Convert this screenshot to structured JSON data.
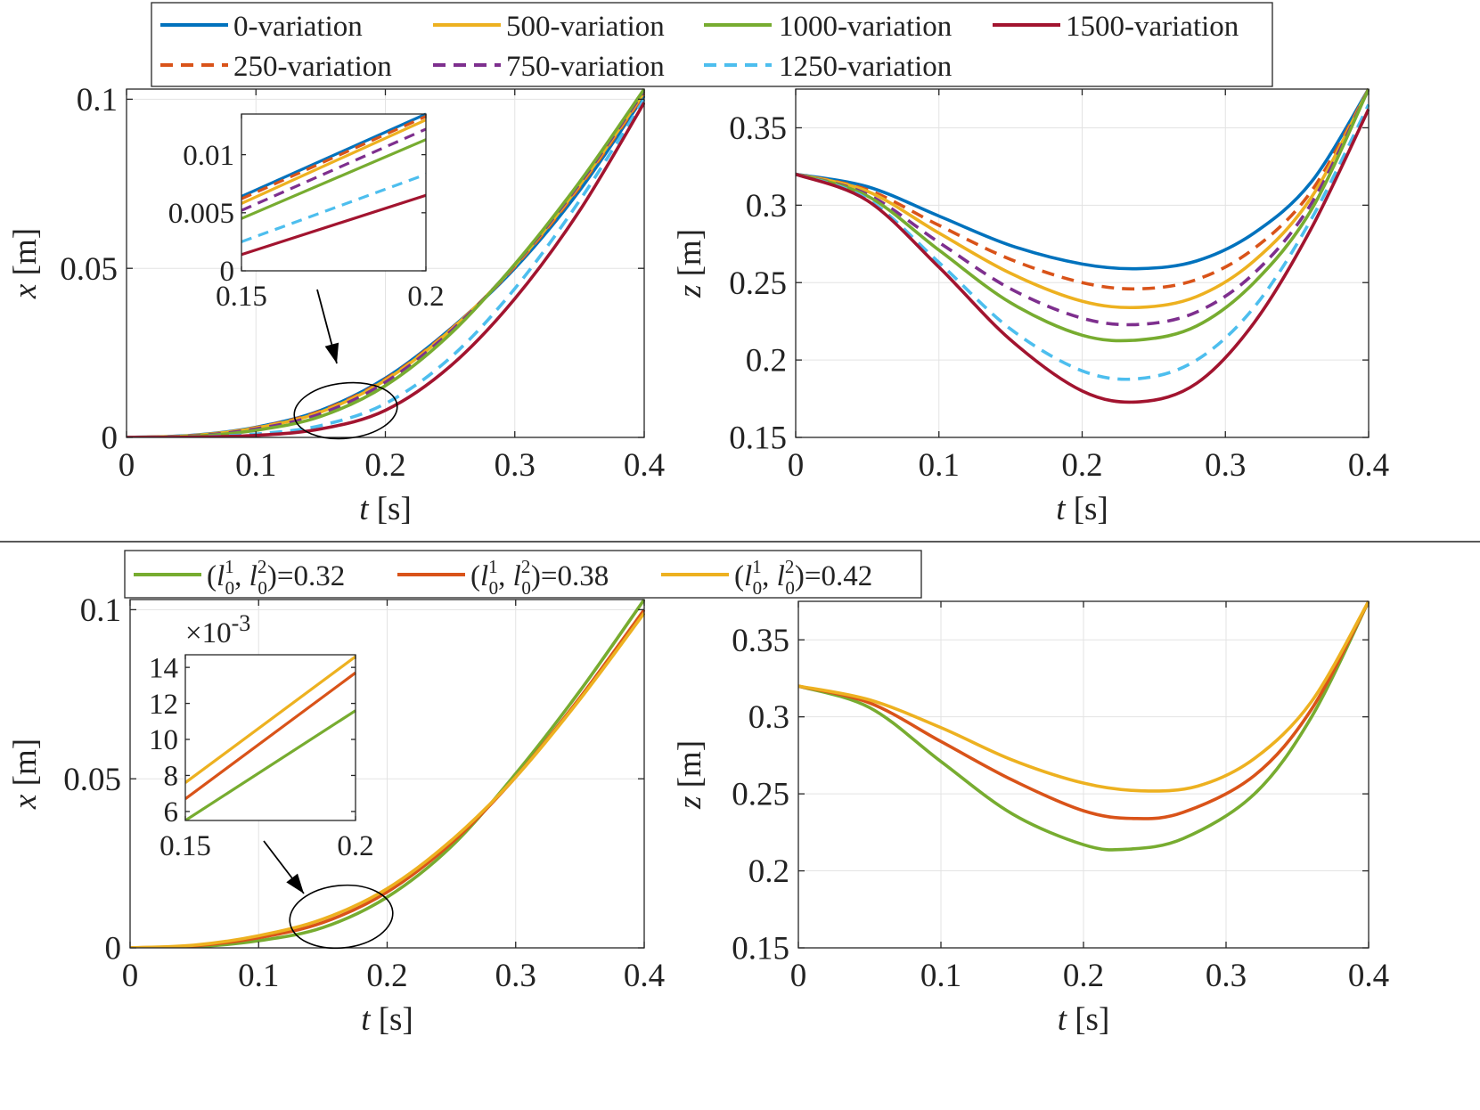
{
  "colors": {
    "blue": "#0072BD",
    "orange": "#D95319",
    "yellow": "#EDB120",
    "purple": "#7E2F8E",
    "green": "#77AC30",
    "cyan": "#4DBEEE",
    "red": "#A2142F"
  },
  "legends": {
    "top": [
      {
        "label": "0-variation",
        "color": "#0072BD",
        "dash": false
      },
      {
        "label": "500-variation",
        "color": "#EDB120",
        "dash": false
      },
      {
        "label": "1000-variation",
        "color": "#77AC30",
        "dash": false
      },
      {
        "label": "1500-variation",
        "color": "#A2142F",
        "dash": false
      },
      {
        "label": "250-variation",
        "color": "#D95319",
        "dash": true
      },
      {
        "label": "750-variation",
        "color": "#7E2F8E",
        "dash": true
      },
      {
        "label": "1250-variation",
        "color": "#4DBEEE",
        "dash": true
      }
    ],
    "bottom": [
      {
        "label": "=0.32",
        "color": "#77AC30",
        "dash": false
      },
      {
        "label": "=0.38",
        "color": "#D95319",
        "dash": false
      },
      {
        "label": "=0.42",
        "color": "#EDB120",
        "dash": false
      }
    ],
    "bottom_prefix": {
      "open": "(",
      "l1": "l",
      "sup1": "1",
      "sub1": "0",
      "comma": ", ",
      "l2": "l",
      "sup2": "2",
      "sub2": "0",
      "close": ")"
    }
  },
  "chart_data": [
    {
      "id": "top-x",
      "type": "line",
      "xlabel_var": "t",
      "xlabel_unit": "[s]",
      "ylabel_var": "x",
      "ylabel_unit": "[m]",
      "xlim": [
        0,
        0.4
      ],
      "ylim": [
        0,
        0.103
      ],
      "xticks": [
        0,
        0.1,
        0.2,
        0.3,
        0.4
      ],
      "xtick_labels": [
        "0",
        "0.1",
        "0.2",
        "0.3",
        "0.4"
      ],
      "yticks": [
        0,
        0.05,
        0.1
      ],
      "ytick_labels": [
        "0",
        "0.05",
        "0.1"
      ],
      "grid": true,
      "series": [
        {
          "name": "0-variation",
          "color": "#0072BD",
          "dash": false,
          "x": [
            0,
            0.05,
            0.1,
            0.15,
            0.2,
            0.25,
            0.3,
            0.35,
            0.4
          ],
          "y": [
            0,
            0.0006,
            0.003,
            0.008,
            0.0175,
            0.032,
            0.05,
            0.073,
            0.101
          ]
        },
        {
          "name": "250-variation",
          "color": "#D95319",
          "dash": true,
          "x": [
            0,
            0.05,
            0.1,
            0.15,
            0.2,
            0.25,
            0.3,
            0.35,
            0.4
          ],
          "y": [
            0,
            0.0005,
            0.0029,
            0.0078,
            0.0172,
            0.0318,
            0.0505,
            0.074,
            0.1015
          ]
        },
        {
          "name": "500-variation",
          "color": "#EDB120",
          "dash": false,
          "x": [
            0,
            0.05,
            0.1,
            0.15,
            0.2,
            0.25,
            0.3,
            0.35,
            0.4
          ],
          "y": [
            0,
            0.0005,
            0.0028,
            0.0075,
            0.0169,
            0.0316,
            0.0508,
            0.0745,
            0.102
          ]
        },
        {
          "name": "750-variation",
          "color": "#7E2F8E",
          "dash": true,
          "x": [
            0,
            0.05,
            0.1,
            0.15,
            0.2,
            0.25,
            0.3,
            0.35,
            0.4
          ],
          "y": [
            0,
            0.0004,
            0.0025,
            0.007,
            0.0163,
            0.0312,
            0.051,
            0.075,
            0.1025
          ]
        },
        {
          "name": "1000-variation",
          "color": "#77AC30",
          "dash": false,
          "x": [
            0,
            0.05,
            0.1,
            0.15,
            0.2,
            0.25,
            0.3,
            0.35,
            0.4
          ],
          "y": [
            0,
            0.0003,
            0.0021,
            0.0062,
            0.0153,
            0.0305,
            0.0512,
            0.0755,
            0.103
          ]
        },
        {
          "name": "1250-variation",
          "color": "#4DBEEE",
          "dash": true,
          "x": [
            0,
            0.05,
            0.1,
            0.15,
            0.2,
            0.25,
            0.3,
            0.35,
            0.4
          ],
          "y": [
            0,
            0.0001,
            0.001,
            0.0035,
            0.01,
            0.0235,
            0.044,
            0.07,
            0.1
          ]
        },
        {
          "name": "1500-variation",
          "color": "#A2142F",
          "dash": false,
          "x": [
            0,
            0.05,
            0.1,
            0.15,
            0.2,
            0.25,
            0.3,
            0.35,
            0.4
          ],
          "y": [
            0,
            0.0001,
            0.0006,
            0.0025,
            0.008,
            0.021,
            0.041,
            0.067,
            0.099
          ]
        }
      ]
    },
    {
      "id": "top-x-inset",
      "type": "line",
      "xlim": [
        0.15,
        0.2
      ],
      "ylim": [
        0,
        0.0135
      ],
      "xticks": [
        0.15,
        0.2
      ],
      "xtick_labels": [
        "0.15",
        "0.2"
      ],
      "yticks": [
        0,
        0.005,
        0.01
      ],
      "ytick_labels": [
        "0",
        "0.005",
        "0.01"
      ],
      "grid": false,
      "series": [
        {
          "name": "0-variation",
          "color": "#0072BD",
          "dash": false,
          "x": [
            0.15,
            0.2
          ],
          "y": [
            0.0064,
            0.0135
          ]
        },
        {
          "name": "250-variation",
          "color": "#D95319",
          "dash": true,
          "x": [
            0.15,
            0.2
          ],
          "y": [
            0.0062,
            0.0133
          ]
        },
        {
          "name": "500-variation",
          "color": "#EDB120",
          "dash": false,
          "x": [
            0.15,
            0.2
          ],
          "y": [
            0.0058,
            0.013
          ]
        },
        {
          "name": "750-variation",
          "color": "#7E2F8E",
          "dash": true,
          "x": [
            0.15,
            0.2
          ],
          "y": [
            0.0052,
            0.0122
          ]
        },
        {
          "name": "1000-variation",
          "color": "#77AC30",
          "dash": false,
          "x": [
            0.15,
            0.2
          ],
          "y": [
            0.0045,
            0.0113
          ]
        },
        {
          "name": "1250-variation",
          "color": "#4DBEEE",
          "dash": true,
          "x": [
            0.15,
            0.2
          ],
          "y": [
            0.0025,
            0.0083
          ]
        },
        {
          "name": "1500-variation",
          "color": "#A2142F",
          "dash": false,
          "x": [
            0.15,
            0.2
          ],
          "y": [
            0.0014,
            0.0065
          ]
        }
      ]
    },
    {
      "id": "top-z",
      "type": "line",
      "xlabel_var": "t",
      "xlabel_unit": "[s]",
      "ylabel_var": "z",
      "ylabel_unit": "[m]",
      "xlim": [
        0,
        0.4
      ],
      "ylim": [
        0.15,
        0.375
      ],
      "xticks": [
        0,
        0.1,
        0.2,
        0.3,
        0.4
      ],
      "xtick_labels": [
        "0",
        "0.1",
        "0.2",
        "0.3",
        "0.4"
      ],
      "yticks": [
        0.15,
        0.2,
        0.25,
        0.3,
        0.35
      ],
      "ytick_labels": [
        "0.15",
        "0.2",
        "0.25",
        "0.3",
        "0.35"
      ],
      "grid": true,
      "series": [
        {
          "name": "0-variation",
          "color": "#0072BD",
          "dash": false,
          "x": [
            0,
            0.05,
            0.1,
            0.15,
            0.2,
            0.24,
            0.28,
            0.32,
            0.36,
            0.4
          ],
          "y": [
            0.32,
            0.312,
            0.293,
            0.274,
            0.262,
            0.259,
            0.264,
            0.282,
            0.315,
            0.375
          ]
        },
        {
          "name": "250-variation",
          "color": "#D95319",
          "dash": true,
          "x": [
            0,
            0.05,
            0.1,
            0.15,
            0.2,
            0.24,
            0.28,
            0.32,
            0.36,
            0.4
          ],
          "y": [
            0.32,
            0.31,
            0.287,
            0.265,
            0.25,
            0.246,
            0.252,
            0.272,
            0.309,
            0.375
          ]
        },
        {
          "name": "500-variation",
          "color": "#EDB120",
          "dash": false,
          "x": [
            0,
            0.05,
            0.1,
            0.15,
            0.2,
            0.24,
            0.28,
            0.32,
            0.36,
            0.4
          ],
          "y": [
            0.32,
            0.309,
            0.282,
            0.256,
            0.238,
            0.234,
            0.241,
            0.264,
            0.305,
            0.375
          ]
        },
        {
          "name": "750-variation",
          "color": "#7E2F8E",
          "dash": true,
          "x": [
            0,
            0.05,
            0.1,
            0.15,
            0.2,
            0.24,
            0.28,
            0.32,
            0.36,
            0.4
          ],
          "y": [
            0.32,
            0.307,
            0.276,
            0.246,
            0.227,
            0.223,
            0.231,
            0.256,
            0.301,
            0.375
          ]
        },
        {
          "name": "1000-variation",
          "color": "#77AC30",
          "dash": false,
          "x": [
            0,
            0.05,
            0.1,
            0.15,
            0.2,
            0.24,
            0.28,
            0.32,
            0.36,
            0.4
          ],
          "y": [
            0.32,
            0.306,
            0.271,
            0.237,
            0.216,
            0.213,
            0.222,
            0.25,
            0.297,
            0.375
          ]
        },
        {
          "name": "1250-variation",
          "color": "#4DBEEE",
          "dash": true,
          "x": [
            0,
            0.05,
            0.1,
            0.15,
            0.2,
            0.24,
            0.28,
            0.32,
            0.36,
            0.4
          ],
          "y": [
            0.32,
            0.304,
            0.263,
            0.22,
            0.193,
            0.188,
            0.2,
            0.234,
            0.291,
            0.365
          ]
        },
        {
          "name": "1500-variation",
          "color": "#A2142F",
          "dash": false,
          "x": [
            0,
            0.05,
            0.1,
            0.15,
            0.2,
            0.24,
            0.28,
            0.32,
            0.36,
            0.4
          ],
          "y": [
            0.32,
            0.303,
            0.26,
            0.213,
            0.18,
            0.173,
            0.185,
            0.224,
            0.285,
            0.362
          ]
        }
      ]
    },
    {
      "id": "bottom-x",
      "type": "line",
      "xlabel_var": "t",
      "xlabel_unit": "[s]",
      "ylabel_var": "x",
      "ylabel_unit": "[m]",
      "xlim": [
        0,
        0.4
      ],
      "ylim": [
        0,
        0.103
      ],
      "xticks": [
        0,
        0.1,
        0.2,
        0.3,
        0.4
      ],
      "xtick_labels": [
        "0",
        "0.1",
        "0.2",
        "0.3",
        "0.4"
      ],
      "yticks": [
        0,
        0.05,
        0.1
      ],
      "ytick_labels": [
        "0",
        "0.05",
        "0.1"
      ],
      "grid": true,
      "series": [
        {
          "name": "(l0^1, l0^2)=0.32",
          "color": "#77AC30",
          "dash": false,
          "x": [
            0,
            0.05,
            0.1,
            0.15,
            0.2,
            0.25,
            0.3,
            0.35,
            0.4
          ],
          "y": [
            0,
            0.0003,
            0.0021,
            0.006,
            0.015,
            0.03,
            0.0515,
            0.076,
            0.103
          ]
        },
        {
          "name": "(l0^1, l0^2)=0.38",
          "color": "#D95319",
          "dash": false,
          "x": [
            0,
            0.05,
            0.1,
            0.15,
            0.2,
            0.25,
            0.3,
            0.35,
            0.4
          ],
          "y": [
            0,
            0.0006,
            0.003,
            0.0075,
            0.0165,
            0.031,
            0.0505,
            0.074,
            0.1
          ]
        },
        {
          "name": "(l0^1, l0^2)=0.42",
          "color": "#EDB120",
          "dash": false,
          "x": [
            0,
            0.05,
            0.1,
            0.15,
            0.2,
            0.25,
            0.3,
            0.35,
            0.4
          ],
          "y": [
            0,
            0.0008,
            0.0036,
            0.0085,
            0.0175,
            0.0318,
            0.0505,
            0.0735,
            0.099
          ]
        }
      ]
    },
    {
      "id": "bottom-x-inset",
      "type": "line",
      "exponent_prefix": "×10",
      "exponent": "-3",
      "xlim": [
        0.15,
        0.2
      ],
      "ylim": [
        5.5,
        14.7
      ],
      "xticks": [
        0.15,
        0.2
      ],
      "xtick_labels": [
        "0.15",
        "0.2"
      ],
      "yticks": [
        6,
        8,
        10,
        12,
        14
      ],
      "ytick_labels": [
        "6",
        "8",
        "10",
        "12",
        "14"
      ],
      "grid": false,
      "series": [
        {
          "name": "(l0^1, l0^2)=0.32",
          "color": "#77AC30",
          "dash": false,
          "x": [
            0.15,
            0.2
          ],
          "y": [
            5.5,
            11.6
          ]
        },
        {
          "name": "(l0^1, l0^2)=0.38",
          "color": "#D95319",
          "dash": false,
          "x": [
            0.15,
            0.2
          ],
          "y": [
            6.7,
            13.7
          ]
        },
        {
          "name": "(l0^1, l0^2)=0.42",
          "color": "#EDB120",
          "dash": false,
          "x": [
            0.15,
            0.2
          ],
          "y": [
            7.6,
            14.6
          ]
        }
      ]
    },
    {
      "id": "bottom-z",
      "type": "line",
      "xlabel_var": "t",
      "xlabel_unit": "[s]",
      "ylabel_var": "z",
      "ylabel_unit": "[m]",
      "xlim": [
        0,
        0.4
      ],
      "ylim": [
        0.15,
        0.375
      ],
      "xticks": [
        0,
        0.1,
        0.2,
        0.3,
        0.4
      ],
      "xtick_labels": [
        "0",
        "0.1",
        "0.2",
        "0.3",
        "0.4"
      ],
      "yticks": [
        0.15,
        0.2,
        0.25,
        0.3,
        0.35
      ],
      "ytick_labels": [
        "0.15",
        "0.2",
        "0.25",
        "0.3",
        "0.35"
      ],
      "grid": true,
      "series": [
        {
          "name": "(l0^1, l0^2)=0.32",
          "color": "#77AC30",
          "dash": false,
          "x": [
            0,
            0.05,
            0.1,
            0.15,
            0.2,
            0.23,
            0.27,
            0.32,
            0.36,
            0.4
          ],
          "y": [
            0.32,
            0.306,
            0.271,
            0.237,
            0.217,
            0.214,
            0.221,
            0.25,
            0.3,
            0.375
          ]
        },
        {
          "name": "(l0^1, l0^2)=0.38",
          "color": "#D95319",
          "dash": false,
          "x": [
            0,
            0.05,
            0.1,
            0.15,
            0.2,
            0.235,
            0.27,
            0.32,
            0.36,
            0.4
          ],
          "y": [
            0.32,
            0.309,
            0.284,
            0.259,
            0.239,
            0.234,
            0.238,
            0.262,
            0.305,
            0.375
          ]
        },
        {
          "name": "(l0^1, l0^2)=0.42",
          "color": "#EDB120",
          "dash": false,
          "x": [
            0,
            0.05,
            0.1,
            0.15,
            0.2,
            0.24,
            0.28,
            0.32,
            0.36,
            0.4
          ],
          "y": [
            0.32,
            0.311,
            0.293,
            0.272,
            0.257,
            0.252,
            0.255,
            0.273,
            0.31,
            0.375
          ]
        }
      ]
    }
  ]
}
